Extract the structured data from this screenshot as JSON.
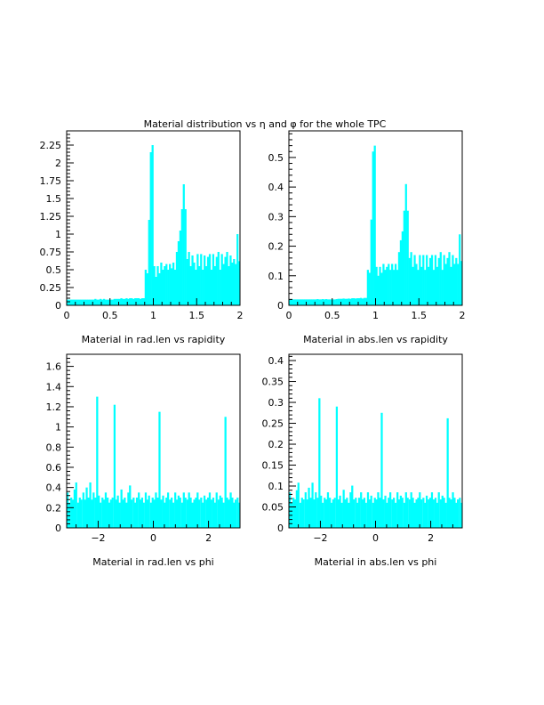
{
  "page": {
    "title": "Material distribution vs η and φ for the whole TPC"
  },
  "style": {
    "bar_color": "#00ffff",
    "axis_color": "#000000"
  },
  "chart_data": [
    {
      "type": "bar",
      "xlabel": "Material in rad.len vs rapidity",
      "xlim": [
        0,
        2
      ],
      "ylim": [
        0,
        2.45
      ],
      "xticks": [
        0,
        0.5,
        1,
        1.5,
        2
      ],
      "xtick_labels": [
        "0",
        "0.5",
        "1",
        "1.5",
        "2"
      ],
      "yticks": [
        0,
        0.25,
        0.5,
        0.75,
        1,
        1.25,
        1.5,
        1.75,
        2,
        2.25
      ],
      "ytick_labels": [
        "0",
        "0.25",
        "0.5",
        "0.75",
        "1",
        "1.25",
        "1.5",
        "1.75",
        "2",
        "2.25"
      ],
      "x": [
        0.01,
        0.03,
        0.05,
        0.07,
        0.09,
        0.11,
        0.13,
        0.15,
        0.17,
        0.19,
        0.21,
        0.23,
        0.25,
        0.27,
        0.29,
        0.31,
        0.33,
        0.35,
        0.37,
        0.39,
        0.41,
        0.43,
        0.45,
        0.47,
        0.49,
        0.51,
        0.53,
        0.55,
        0.57,
        0.59,
        0.61,
        0.63,
        0.65,
        0.67,
        0.69,
        0.71,
        0.73,
        0.75,
        0.77,
        0.79,
        0.81,
        0.83,
        0.85,
        0.87,
        0.89,
        0.91,
        0.93,
        0.95,
        0.97,
        0.99,
        1.01,
        1.03,
        1.05,
        1.07,
        1.09,
        1.11,
        1.13,
        1.15,
        1.17,
        1.19,
        1.21,
        1.23,
        1.25,
        1.27,
        1.29,
        1.31,
        1.33,
        1.35,
        1.37,
        1.39,
        1.41,
        1.43,
        1.45,
        1.47,
        1.49,
        1.51,
        1.53,
        1.55,
        1.57,
        1.59,
        1.61,
        1.63,
        1.65,
        1.67,
        1.69,
        1.71,
        1.73,
        1.75,
        1.77,
        1.79,
        1.81,
        1.83,
        1.85,
        1.87,
        1.89,
        1.91,
        1.93,
        1.95,
        1.97,
        1.99
      ],
      "values": [
        0.08,
        0.08,
        0.08,
        0.08,
        0.08,
        0.08,
        0.08,
        0.08,
        0.08,
        0.08,
        0.08,
        0.08,
        0.08,
        0.08,
        0.08,
        0.08,
        0.09,
        0.08,
        0.08,
        0.09,
        0.08,
        0.09,
        0.08,
        0.08,
        0.08,
        0.08,
        0.08,
        0.09,
        0.09,
        0.09,
        0.09,
        0.1,
        0.09,
        0.09,
        0.1,
        0.09,
        0.1,
        0.1,
        0.09,
        0.1,
        0.1,
        0.1,
        0.09,
        0.1,
        0.1,
        0.5,
        0.45,
        1.2,
        2.15,
        2.25,
        0.55,
        0.4,
        0.55,
        0.45,
        0.6,
        0.5,
        0.55,
        0.58,
        0.5,
        0.58,
        0.52,
        0.6,
        0.5,
        0.75,
        0.9,
        1.05,
        1.35,
        1.7,
        1.35,
        0.65,
        0.75,
        0.55,
        0.7,
        0.6,
        0.5,
        0.72,
        0.55,
        0.72,
        0.5,
        0.7,
        0.55,
        0.68,
        0.72,
        0.5,
        0.72,
        0.55,
        0.68,
        0.75,
        0.5,
        0.72,
        0.58,
        0.68,
        0.75,
        0.55,
        0.7,
        0.6,
        0.65,
        0.58,
        1.0,
        0.62
      ]
    },
    {
      "type": "bar",
      "xlabel": "Material in abs.len vs rapidity",
      "xlim": [
        0,
        2
      ],
      "ylim": [
        0,
        0.59
      ],
      "xticks": [
        0,
        0.5,
        1,
        1.5,
        2
      ],
      "xtick_labels": [
        "0",
        "0.5",
        "1",
        "1.5",
        "2"
      ],
      "yticks": [
        0,
        0.1,
        0.2,
        0.3,
        0.4,
        0.5
      ],
      "ytick_labels": [
        "0",
        "0.1",
        "0.2",
        "0.3",
        "0.4",
        "0.5"
      ],
      "x": [
        0.01,
        0.03,
        0.05,
        0.07,
        0.09,
        0.11,
        0.13,
        0.15,
        0.17,
        0.19,
        0.21,
        0.23,
        0.25,
        0.27,
        0.29,
        0.31,
        0.33,
        0.35,
        0.37,
        0.39,
        0.41,
        0.43,
        0.45,
        0.47,
        0.49,
        0.51,
        0.53,
        0.55,
        0.57,
        0.59,
        0.61,
        0.63,
        0.65,
        0.67,
        0.69,
        0.71,
        0.73,
        0.75,
        0.77,
        0.79,
        0.81,
        0.83,
        0.85,
        0.87,
        0.89,
        0.91,
        0.93,
        0.95,
        0.97,
        0.99,
        1.01,
        1.03,
        1.05,
        1.07,
        1.09,
        1.11,
        1.13,
        1.15,
        1.17,
        1.19,
        1.21,
        1.23,
        1.25,
        1.27,
        1.29,
        1.31,
        1.33,
        1.35,
        1.37,
        1.39,
        1.41,
        1.43,
        1.45,
        1.47,
        1.49,
        1.51,
        1.53,
        1.55,
        1.57,
        1.59,
        1.61,
        1.63,
        1.65,
        1.67,
        1.69,
        1.71,
        1.73,
        1.75,
        1.77,
        1.79,
        1.81,
        1.83,
        1.85,
        1.87,
        1.89,
        1.91,
        1.93,
        1.95,
        1.97,
        1.99
      ],
      "values": [
        0.02,
        0.02,
        0.02,
        0.02,
        0.02,
        0.02,
        0.02,
        0.02,
        0.02,
        0.02,
        0.02,
        0.02,
        0.02,
        0.02,
        0.02,
        0.02,
        0.021,
        0.02,
        0.02,
        0.021,
        0.02,
        0.021,
        0.02,
        0.02,
        0.02,
        0.02,
        0.02,
        0.021,
        0.022,
        0.022,
        0.022,
        0.023,
        0.022,
        0.022,
        0.023,
        0.022,
        0.024,
        0.024,
        0.023,
        0.024,
        0.024,
        0.025,
        0.023,
        0.025,
        0.025,
        0.12,
        0.11,
        0.29,
        0.52,
        0.54,
        0.13,
        0.1,
        0.13,
        0.11,
        0.14,
        0.12,
        0.13,
        0.14,
        0.12,
        0.14,
        0.12,
        0.14,
        0.12,
        0.18,
        0.22,
        0.25,
        0.32,
        0.41,
        0.32,
        0.16,
        0.18,
        0.13,
        0.17,
        0.14,
        0.12,
        0.17,
        0.13,
        0.17,
        0.12,
        0.17,
        0.13,
        0.16,
        0.17,
        0.12,
        0.17,
        0.13,
        0.16,
        0.18,
        0.12,
        0.17,
        0.14,
        0.16,
        0.18,
        0.13,
        0.17,
        0.14,
        0.16,
        0.14,
        0.24,
        0.15
      ]
    },
    {
      "type": "bar",
      "xlabel": "Material in rad.len vs phi",
      "xlim": [
        -3.1416,
        3.1416
      ],
      "ylim": [
        0,
        1.72
      ],
      "xticks": [
        -2,
        0,
        2
      ],
      "xtick_labels": [
        "−2",
        "0",
        "2"
      ],
      "yticks": [
        0,
        0.2,
        0.4,
        0.6,
        0.8,
        1,
        1.2,
        1.4,
        1.6
      ],
      "ytick_labels": [
        "0",
        "0.2",
        "0.4",
        "0.6",
        "0.8",
        "1",
        "1.2",
        "1.4",
        "1.6"
      ],
      "x": [
        -3.11,
        -3.05,
        -2.98,
        -2.92,
        -2.86,
        -2.8,
        -2.73,
        -2.67,
        -2.61,
        -2.54,
        -2.48,
        -2.42,
        -2.36,
        -2.29,
        -2.23,
        -2.17,
        -2.1,
        -2.04,
        -1.98,
        -1.92,
        -1.85,
        -1.79,
        -1.73,
        -1.66,
        -1.6,
        -1.54,
        -1.48,
        -1.41,
        -1.35,
        -1.29,
        -1.23,
        -1.16,
        -1.1,
        -1.04,
        -0.97,
        -0.91,
        -0.85,
        -0.79,
        -0.72,
        -0.66,
        -0.6,
        -0.53,
        -0.47,
        -0.41,
        -0.35,
        -0.28,
        -0.22,
        -0.16,
        -0.09,
        -0.03,
        0.03,
        0.09,
        0.16,
        0.22,
        0.28,
        0.35,
        0.41,
        0.47,
        0.53,
        0.6,
        0.66,
        0.72,
        0.79,
        0.85,
        0.91,
        0.97,
        1.04,
        1.1,
        1.16,
        1.23,
        1.29,
        1.35,
        1.41,
        1.48,
        1.54,
        1.6,
        1.66,
        1.73,
        1.79,
        1.85,
        1.92,
        1.98,
        2.04,
        2.1,
        2.17,
        2.23,
        2.29,
        2.36,
        2.42,
        2.48,
        2.54,
        2.61,
        2.67,
        2.73,
        2.8,
        2.86,
        2.92,
        2.98,
        3.05,
        3.11
      ],
      "values": [
        0.35,
        0.25,
        0.3,
        0.28,
        0.38,
        0.45,
        0.25,
        0.3,
        0.28,
        0.35,
        0.28,
        0.4,
        0.3,
        0.45,
        0.28,
        0.35,
        0.3,
        1.3,
        0.32,
        0.25,
        0.3,
        0.28,
        0.35,
        0.3,
        0.25,
        0.28,
        0.3,
        1.22,
        0.28,
        0.32,
        0.25,
        0.38,
        0.28,
        0.3,
        0.25,
        0.35,
        0.42,
        0.28,
        0.3,
        0.25,
        0.3,
        0.35,
        0.28,
        0.3,
        0.25,
        0.35,
        0.28,
        0.32,
        0.25,
        0.3,
        0.28,
        0.35,
        0.3,
        1.15,
        0.28,
        0.32,
        0.25,
        0.3,
        0.35,
        0.28,
        0.3,
        0.25,
        0.35,
        0.28,
        0.32,
        0.3,
        0.25,
        0.35,
        0.3,
        0.28,
        0.35,
        0.3,
        0.25,
        0.28,
        0.3,
        0.35,
        0.28,
        0.3,
        0.25,
        0.32,
        0.28,
        0.3,
        0.35,
        0.28,
        0.3,
        0.25,
        0.35,
        0.28,
        0.32,
        0.3,
        0.25,
        1.1,
        0.3,
        0.28,
        0.35,
        0.3,
        0.25,
        0.28,
        0.3,
        0.25
      ]
    },
    {
      "type": "bar",
      "xlabel": "Material in abs.len vs phi",
      "xlim": [
        -3.1416,
        3.1416
      ],
      "ylim": [
        0,
        0.415
      ],
      "xticks": [
        -2,
        0,
        2
      ],
      "xtick_labels": [
        "−2",
        "0",
        "2"
      ],
      "yticks": [
        0,
        0.05,
        0.1,
        0.15,
        0.2,
        0.25,
        0.3,
        0.35,
        0.4
      ],
      "ytick_labels": [
        "0",
        "0.05",
        "0.1",
        "0.15",
        "0.2",
        "0.25",
        "0.3",
        "0.35",
        "0.4"
      ],
      "x": [
        -3.11,
        -3.05,
        -2.98,
        -2.92,
        -2.86,
        -2.8,
        -2.73,
        -2.67,
        -2.61,
        -2.54,
        -2.48,
        -2.42,
        -2.36,
        -2.29,
        -2.23,
        -2.17,
        -2.1,
        -2.04,
        -1.98,
        -1.92,
        -1.85,
        -1.79,
        -1.73,
        -1.66,
        -1.6,
        -1.54,
        -1.48,
        -1.41,
        -1.35,
        -1.29,
        -1.23,
        -1.16,
        -1.1,
        -1.04,
        -0.97,
        -0.91,
        -0.85,
        -0.79,
        -0.72,
        -0.66,
        -0.6,
        -0.53,
        -0.47,
        -0.41,
        -0.35,
        -0.28,
        -0.22,
        -0.16,
        -0.09,
        -0.03,
        0.03,
        0.09,
        0.16,
        0.22,
        0.28,
        0.35,
        0.41,
        0.47,
        0.53,
        0.6,
        0.66,
        0.72,
        0.79,
        0.85,
        0.91,
        0.97,
        1.04,
        1.1,
        1.16,
        1.23,
        1.29,
        1.35,
        1.41,
        1.48,
        1.54,
        1.6,
        1.66,
        1.73,
        1.79,
        1.85,
        1.92,
        1.98,
        2.04,
        2.1,
        2.17,
        2.23,
        2.29,
        2.36,
        2.42,
        2.48,
        2.54,
        2.61,
        2.67,
        2.73,
        2.8,
        2.86,
        2.92,
        2.98,
        3.05,
        3.11
      ],
      "values": [
        0.085,
        0.06,
        0.072,
        0.068,
        0.09,
        0.108,
        0.06,
        0.072,
        0.068,
        0.085,
        0.068,
        0.096,
        0.072,
        0.108,
        0.068,
        0.085,
        0.072,
        0.31,
        0.077,
        0.06,
        0.072,
        0.068,
        0.085,
        0.072,
        0.06,
        0.068,
        0.072,
        0.29,
        0.068,
        0.077,
        0.06,
        0.091,
        0.068,
        0.072,
        0.06,
        0.085,
        0.101,
        0.068,
        0.072,
        0.06,
        0.072,
        0.085,
        0.068,
        0.072,
        0.06,
        0.085,
        0.068,
        0.077,
        0.06,
        0.072,
        0.068,
        0.085,
        0.072,
        0.275,
        0.068,
        0.077,
        0.06,
        0.072,
        0.085,
        0.068,
        0.072,
        0.06,
        0.085,
        0.068,
        0.077,
        0.072,
        0.06,
        0.085,
        0.072,
        0.068,
        0.085,
        0.072,
        0.06,
        0.068,
        0.072,
        0.085,
        0.068,
        0.072,
        0.06,
        0.077,
        0.068,
        0.072,
        0.085,
        0.068,
        0.072,
        0.06,
        0.085,
        0.068,
        0.077,
        0.072,
        0.06,
        0.262,
        0.072,
        0.068,
        0.085,
        0.072,
        0.06,
        0.068,
        0.072,
        0.06
      ]
    }
  ]
}
